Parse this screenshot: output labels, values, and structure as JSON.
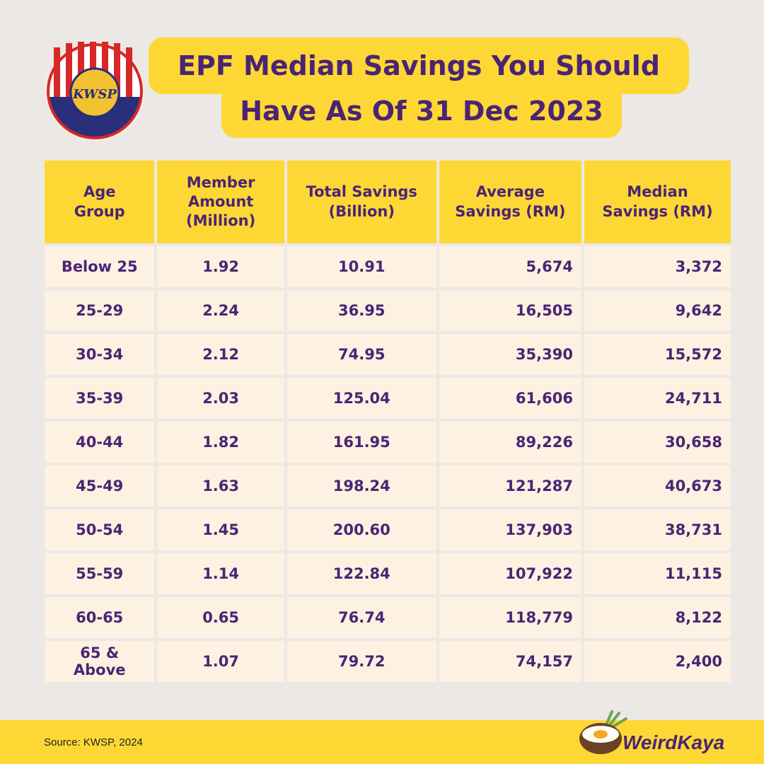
{
  "logo": {
    "text": "KWSP"
  },
  "title": {
    "line1": "EPF Median Savings You Should",
    "line2": "Have As Of 31 Dec 2023"
  },
  "chart_data": {
    "type": "table",
    "columns": [
      "Age Group",
      "Member Amount (Million)",
      "Total Savings (Billion)",
      "Average Savings (RM)",
      "Median Savings (RM)"
    ],
    "header_lines": [
      [
        "Age",
        "Group"
      ],
      [
        "Member",
        "Amount",
        "(Million)"
      ],
      [
        "Total Savings",
        "(Billion)"
      ],
      [
        "Average",
        "Savings (RM)"
      ],
      [
        "Median",
        "Savings (RM)"
      ]
    ],
    "rows": [
      [
        "Below 25",
        "1.92",
        "10.91",
        "5,674",
        "3,372"
      ],
      [
        "25-29",
        "2.24",
        "36.95",
        "16,505",
        "9,642"
      ],
      [
        "30-34",
        "2.12",
        "74.95",
        "35,390",
        "15,572"
      ],
      [
        "35-39",
        "2.03",
        "125.04",
        "61,606",
        "24,711"
      ],
      [
        "40-44",
        "1.82",
        "161.95",
        "89,226",
        "30,658"
      ],
      [
        "45-49",
        "1.63",
        "198.24",
        "121,287",
        "40,673"
      ],
      [
        "50-54",
        "1.45",
        "200.60",
        "137,903",
        "38,731"
      ],
      [
        "55-59",
        "1.14",
        "122.84",
        "107,922",
        "11,115"
      ],
      [
        "60-65",
        "0.65",
        "76.74",
        "118,779",
        "8,122"
      ],
      [
        "65 & Above",
        "1.07",
        "79.72",
        "74,157",
        "2,400"
      ]
    ]
  },
  "footer": {
    "source": "Source: KWSP, 2024",
    "brand": "WeirdKaya"
  }
}
